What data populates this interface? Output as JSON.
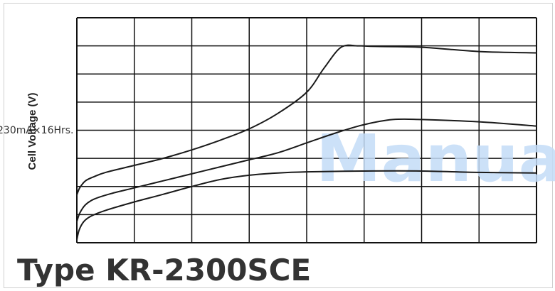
{
  "page": {
    "title": "Type KR-2300SCE"
  },
  "watermark": {
    "text": "Manua",
    "color": "#c4dcf7"
  },
  "chart_data": {
    "type": "line",
    "title": "",
    "xlabel": "",
    "ylabel": "Cell Voltage (V)",
    "grid": true,
    "x_divisions": 8,
    "y_divisions": 8,
    "xlim": [
      0,
      8
    ],
    "ylim": [
      0,
      8
    ],
    "curve_label": "230mA×16Hrs.",
    "line_color": "#1a1a1a",
    "series": [
      {
        "x": [
          0,
          0.05,
          0.15,
          0.3,
          0.5,
          1.0,
          1.5,
          2.0,
          2.5,
          3.0,
          3.5,
          4.0,
          4.3,
          4.6,
          4.9,
          5.2,
          6.0,
          7.0,
          8.0
        ],
        "y": [
          1.7,
          1.95,
          2.2,
          2.35,
          2.5,
          2.75,
          3.0,
          3.3,
          3.65,
          4.05,
          4.6,
          5.35,
          6.2,
          6.95,
          7.0,
          6.98,
          6.95,
          6.8,
          6.75
        ]
      },
      {
        "x": [
          0,
          0.05,
          0.15,
          0.3,
          0.6,
          1.0,
          1.5,
          2.0,
          2.5,
          3.0,
          3.5,
          4.0,
          4.5,
          5.0,
          5.5,
          6.0,
          7.0,
          8.0
        ],
        "y": [
          0.75,
          1.05,
          1.35,
          1.55,
          1.75,
          1.95,
          2.2,
          2.45,
          2.7,
          2.95,
          3.2,
          3.55,
          3.9,
          4.2,
          4.38,
          4.38,
          4.3,
          4.15
        ]
      },
      {
        "x": [
          0,
          0.04,
          0.12,
          0.25,
          0.5,
          1.0,
          1.5,
          2.0,
          2.5,
          3.0,
          3.5,
          4.0,
          5.0,
          6.0,
          7.0,
          8.0
        ],
        "y": [
          0.1,
          0.45,
          0.75,
          0.95,
          1.15,
          1.45,
          1.72,
          2.0,
          2.25,
          2.4,
          2.48,
          2.52,
          2.55,
          2.55,
          2.5,
          2.48
        ]
      }
    ]
  }
}
